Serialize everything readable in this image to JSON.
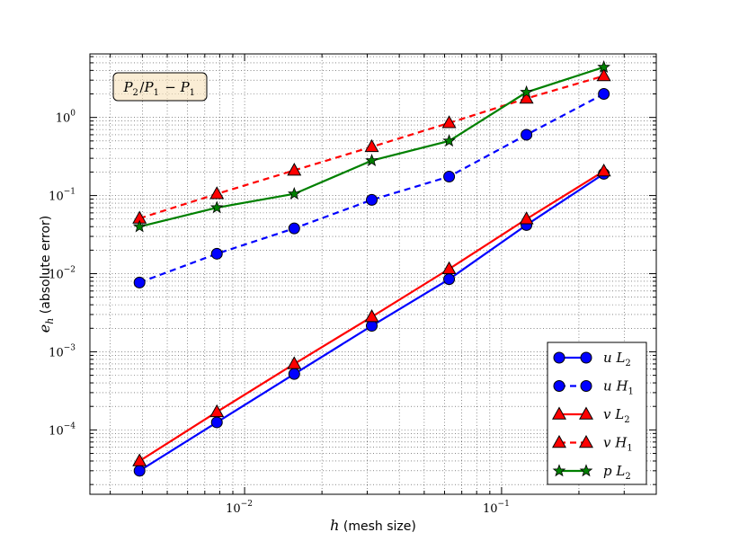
{
  "chart_data": {
    "type": "line",
    "title": "",
    "xlabel": {
      "math": "h",
      "text": "(mesh size)"
    },
    "ylabel": {
      "math": "e",
      "sub": "h",
      "text": "(absolute error)"
    },
    "xscale": "log",
    "yscale": "log",
    "xlim": [
      0.0025,
      0.4
    ],
    "ylim": [
      1.5e-05,
      6.5
    ],
    "grid": true,
    "legend_position": "bottom-right",
    "x_ticks": [
      {
        "value": 0.01,
        "base": "10",
        "exp": "−2"
      },
      {
        "value": 0.1,
        "base": "10",
        "exp": "−1"
      }
    ],
    "y_ticks": [
      {
        "value": 0.0001,
        "base": "10",
        "exp": "−4"
      },
      {
        "value": 0.001,
        "base": "10",
        "exp": "−3"
      },
      {
        "value": 0.01,
        "base": "10",
        "exp": "−2"
      },
      {
        "value": 0.1,
        "base": "10",
        "exp": "−1"
      },
      {
        "value": 1,
        "base": "10",
        "exp": "0"
      }
    ],
    "annotation": {
      "parts": [
        [
          "P",
          "2"
        ],
        [
          "/",
          ""
        ],
        [
          "P",
          "1"
        ],
        [
          " − ",
          ""
        ],
        [
          "P",
          "1"
        ]
      ]
    },
    "x": [
      0.0039,
      0.0078,
      0.0156,
      0.03125,
      0.0625,
      0.125,
      0.25
    ],
    "series": [
      {
        "name": "u L2",
        "label_var": "u",
        "label_norm": "L",
        "label_sub": "2",
        "color": "#0000ff",
        "dash": "solid",
        "marker": "circle",
        "values": [
          3e-05,
          0.000125,
          0.00052,
          0.00215,
          0.0085,
          0.042,
          0.19
        ]
      },
      {
        "name": "u H1",
        "label_var": "u",
        "label_norm": "H",
        "label_sub": "1",
        "color": "#0000ff",
        "dash": "dashed",
        "marker": "circle",
        "values": [
          0.0077,
          0.018,
          0.038,
          0.088,
          0.175,
          0.6,
          2.0
        ]
      },
      {
        "name": "v L2",
        "label_var": "v",
        "label_norm": "L",
        "label_sub": "2",
        "color": "#ff0000",
        "dash": "solid",
        "marker": "triangle",
        "values": [
          4e-05,
          0.00017,
          0.0007,
          0.0028,
          0.0115,
          0.05,
          0.205
        ]
      },
      {
        "name": "v H1",
        "label_var": "v",
        "label_norm": "H",
        "label_sub": "1",
        "color": "#ff0000",
        "dash": "dashed",
        "marker": "triangle",
        "values": [
          0.051,
          0.105,
          0.21,
          0.42,
          0.85,
          1.75,
          3.4
        ]
      },
      {
        "name": "p L2",
        "label_var": "p",
        "label_norm": "L",
        "label_sub": "2",
        "color": "#008000",
        "dash": "solid",
        "marker": "star",
        "values": [
          0.04,
          0.07,
          0.105,
          0.28,
          0.5,
          2.1,
          4.4
        ]
      }
    ]
  }
}
